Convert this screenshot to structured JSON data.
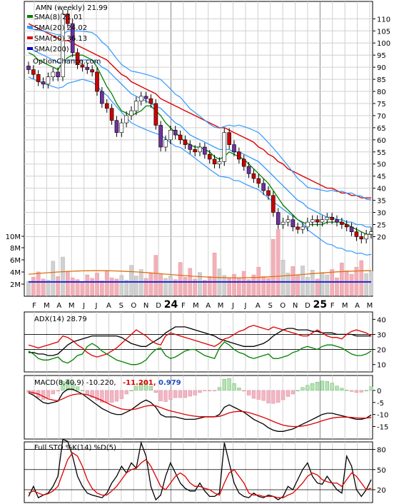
{
  "chart_data": [
    {
      "type": "candlestick",
      "panel": "price",
      "title": "AMN (weekly) 21.99",
      "ylim": [
        16,
        116
      ],
      "yticks": [
        20,
        25,
        30,
        35,
        40,
        45,
        50,
        55,
        60,
        65,
        70,
        75,
        80,
        85,
        90,
        95,
        100,
        105,
        110
      ],
      "legend": [
        {
          "label": "SMA(8) 21.01",
          "color": "#008000"
        },
        {
          "label": "SMA(20) 24.02",
          "color": "#3399ff"
        },
        {
          "label": "SMA(50) 36.13",
          "color": "#dd0000"
        },
        {
          "label": "SMA(200)",
          "color": "#0000cc"
        }
      ],
      "watermark": "OptionChance.com",
      "close": [
        89,
        87,
        84,
        83,
        86,
        88,
        86,
        112,
        108,
        96,
        91,
        90,
        89,
        88,
        80,
        75,
        73,
        68,
        63,
        67,
        70,
        72,
        76,
        78,
        77,
        75,
        66,
        57,
        60,
        64,
        62,
        60,
        58,
        56,
        55,
        57,
        54,
        52,
        50,
        51,
        63,
        58,
        55,
        52,
        49,
        46,
        44,
        42,
        39,
        37,
        30,
        25,
        26,
        27,
        24,
        23,
        24,
        26,
        27,
        26,
        27,
        28,
        27,
        26,
        25,
        24,
        22,
        20,
        19,
        21,
        22
      ],
      "sma8": [
        96,
        95,
        93,
        92,
        91,
        90,
        89,
        92,
        94,
        95,
        95,
        95,
        94,
        93,
        90,
        86,
        82,
        79,
        75,
        72,
        71,
        70,
        71,
        72,
        74,
        74,
        72,
        70,
        67,
        65,
        63,
        61,
        59,
        58,
        57,
        57,
        56,
        55,
        53,
        52,
        53,
        55,
        54,
        53,
        52,
        50,
        48,
        46,
        44,
        42,
        39,
        36,
        33,
        31,
        29,
        27,
        26,
        25,
        25,
        25,
        25,
        26,
        26,
        26,
        26,
        25,
        24,
        23,
        22,
        21,
        21
      ],
      "sma20": [
        98,
        97,
        96,
        95,
        94,
        93,
        92,
        92,
        93,
        93,
        93,
        93,
        93,
        93,
        92,
        90,
        89,
        87,
        85,
        83,
        81,
        79,
        78,
        77,
        76,
        75,
        74,
        73,
        71,
        69,
        67,
        66,
        64,
        62,
        61,
        60,
        59,
        58,
        57,
        56,
        56,
        56,
        55,
        55,
        54,
        53,
        52,
        51,
        49,
        47,
        45,
        43,
        41,
        39,
        37,
        35,
        34,
        32,
        31,
        30,
        29,
        28,
        28,
        27,
        27,
        26,
        26,
        25,
        25,
        24,
        24
      ],
      "sma50": [
        108,
        107,
        106,
        105,
        104,
        103,
        102,
        101,
        101,
        100,
        99,
        98,
        97,
        96,
        95,
        94,
        93,
        91,
        89,
        87,
        86,
        84,
        83,
        82,
        81,
        80,
        79,
        77,
        76,
        75,
        74,
        73,
        72,
        71,
        70,
        69,
        68,
        67,
        66,
        65,
        65,
        64,
        63,
        62,
        61,
        60,
        59,
        57,
        56,
        54,
        53,
        51,
        50,
        48,
        47,
        46,
        45,
        44,
        43,
        42,
        41,
        40,
        40,
        39,
        38,
        38,
        37,
        37,
        36,
        36,
        36
      ],
      "volume_yticks": [
        "2M",
        "4M",
        "6M",
        "8M",
        "10M"
      ]
    },
    {
      "type": "line",
      "panel": "adx",
      "title": "ADX(14) 28.79",
      "ylim": [
        7,
        43
      ],
      "yticks": [
        10,
        20,
        30,
        40
      ],
      "series": [
        {
          "name": "ADX(14)",
          "color": "#000000",
          "values": [
            18,
            18,
            17,
            17,
            16,
            16,
            17,
            20,
            23,
            25,
            26,
            27,
            28,
            29,
            29,
            29,
            29,
            29,
            29,
            28,
            26,
            24,
            23,
            22,
            22,
            24,
            26,
            28,
            31,
            33,
            35,
            35,
            35,
            34,
            33,
            32,
            31,
            30,
            29,
            27,
            26,
            25,
            24,
            23,
            22,
            22,
            22,
            23,
            24,
            26,
            29,
            31,
            33,
            34,
            34,
            33,
            33,
            33,
            32,
            32,
            31,
            31,
            31,
            30,
            30,
            30,
            30,
            29,
            29,
            29,
            29
          ]
        },
        {
          "values": [
            23,
            22,
            21,
            22,
            23,
            24,
            25,
            29,
            28,
            26,
            23,
            21,
            18,
            16,
            15,
            16,
            17,
            19,
            21,
            24,
            27,
            30,
            33,
            31,
            29,
            26,
            24,
            23,
            29,
            31,
            30,
            29,
            28,
            27,
            26,
            25,
            24,
            23,
            22,
            24,
            27,
            28,
            30,
            32,
            33,
            35,
            36,
            35,
            34,
            33,
            35,
            34,
            33,
            32,
            31,
            30,
            29,
            29,
            31,
            33,
            31,
            29,
            28,
            28,
            27,
            30,
            32,
            33,
            32,
            31,
            29
          ],
          "color": "#dd0000"
        },
        {
          "values": [
            19,
            17,
            14,
            13,
            13,
            14,
            15,
            12,
            11,
            13,
            16,
            17,
            22,
            24,
            22,
            19,
            17,
            15,
            13,
            12,
            11,
            10,
            10,
            11,
            13,
            17,
            20,
            21,
            16,
            14,
            15,
            17,
            19,
            20,
            20,
            18,
            16,
            15,
            14,
            21,
            25,
            23,
            20,
            18,
            17,
            15,
            14,
            15,
            16,
            17,
            14,
            14,
            15,
            16,
            18,
            19,
            21,
            22,
            21,
            20,
            22,
            23,
            23,
            22,
            21,
            19,
            17,
            16,
            16,
            17,
            19
          ],
          "color": "#008000"
        }
      ],
      "hlines": [
        20,
        30
      ]
    },
    {
      "type": "line",
      "panel": "macd",
      "title": "MACD(8,40,9) -10.220,",
      "readouts": [
        {
          "text": "-11.201,",
          "color": "#dd0000"
        },
        {
          "text": "0.979",
          "color": "#1f4fbf"
        }
      ],
      "ylim": [
        -19,
        5
      ],
      "yticks": [
        0,
        -5,
        -10,
        -15
      ],
      "series": [
        {
          "values": [
            -1,
            -2,
            -3.5,
            -5,
            -5.5,
            -5,
            -4.5,
            -1,
            0.5,
            0.5,
            -0.5,
            -1.5,
            -3,
            -4.5,
            -6,
            -7.5,
            -8.5,
            -9.5,
            -10,
            -10,
            -9,
            -8,
            -6.5,
            -5,
            -4,
            -5,
            -7,
            -10,
            -11,
            -11,
            -11,
            -11.5,
            -12,
            -12,
            -12,
            -11.5,
            -11,
            -11,
            -11,
            -10,
            -7,
            -6,
            -7,
            -8,
            -9,
            -10.5,
            -12,
            -13,
            -14,
            -15.5,
            -16.5,
            -17,
            -17,
            -16.5,
            -16,
            -15,
            -14,
            -13,
            -12,
            -11,
            -10,
            -9.5,
            -9.5,
            -10,
            -10.5,
            -11,
            -11.5,
            -12,
            -12,
            -11.5,
            -10.2
          ],
          "color": "#000000"
        },
        {
          "values": [
            -0.5,
            -1,
            -1.5,
            -2.5,
            -3.5,
            -4,
            -4.3,
            -3.5,
            -2.5,
            -1.8,
            -1.5,
            -1.5,
            -1.8,
            -2.5,
            -3.3,
            -4.2,
            -5.2,
            -6.2,
            -7,
            -7.7,
            -8,
            -8,
            -7.7,
            -7.1,
            -6.5,
            -6.2,
            -6.4,
            -7.1,
            -7.9,
            -8.5,
            -9,
            -9.5,
            -10,
            -10.4,
            -10.7,
            -10.9,
            -10.9,
            -10.9,
            -10.9,
            -10.8,
            -10.1,
            -9.3,
            -8.9,
            -8.7,
            -8.8,
            -9.2,
            -9.8,
            -10.5,
            -11.2,
            -12,
            -12.9,
            -13.7,
            -14.4,
            -14.8,
            -15,
            -15,
            -14.8,
            -14.4,
            -13.9,
            -13.3,
            -12.6,
            -12,
            -11.5,
            -11.2,
            -11.1,
            -11.1,
            -11.2,
            -11.4,
            -11.5,
            -11.5,
            -11.2
          ],
          "color": "#dd0000"
        }
      ]
    },
    {
      "type": "line",
      "panel": "stochastic",
      "title": "Full STO %K(14) %D(5)",
      "ylim": [
        4,
        87
      ],
      "yticks": [
        20,
        50,
        80
      ],
      "series": [
        {
          "values": [
            10,
            25,
            8,
            12,
            15,
            25,
            40,
            95,
            92,
            70,
            40,
            25,
            15,
            12,
            10,
            8,
            15,
            30,
            40,
            55,
            45,
            60,
            52,
            90,
            70,
            25,
            5,
            12,
            40,
            60,
            45,
            30,
            22,
            18,
            18,
            30,
            18,
            10,
            10,
            15,
            90,
            60,
            30,
            15,
            10,
            8,
            15,
            10,
            8,
            12,
            10,
            5,
            10,
            25,
            20,
            35,
            50,
            60,
            40,
            30,
            28,
            40,
            30,
            20,
            15,
            70,
            55,
            20,
            10,
            20,
            35
          ],
          "color": "#000000"
        },
        {
          "values": [
            15,
            18,
            15,
            12,
            14,
            18,
            25,
            45,
            65,
            75,
            70,
            55,
            35,
            22,
            15,
            12,
            12,
            18,
            25,
            35,
            45,
            50,
            52,
            60,
            65,
            55,
            40,
            25,
            20,
            30,
            40,
            45,
            40,
            30,
            25,
            25,
            22,
            20,
            15,
            12,
            30,
            45,
            50,
            40,
            30,
            15,
            12,
            12,
            10,
            10,
            10,
            8,
            8,
            12,
            15,
            22,
            30,
            40,
            45,
            42,
            35,
            32,
            30,
            30,
            25,
            35,
            45,
            40,
            30,
            20,
            22
          ],
          "color": "#dd0000"
        }
      ],
      "hlines": [
        20,
        50,
        80
      ]
    }
  ],
  "x_axis": {
    "labels": [
      "F",
      "M",
      "A",
      "M",
      "J",
      "J",
      "A",
      "S",
      "O",
      "N",
      "D",
      "24",
      "F",
      "M",
      "A",
      "M",
      "J",
      "J",
      "A",
      "S",
      "O",
      "N",
      "D",
      "25",
      "F",
      "M",
      "A",
      "M"
    ],
    "year_labels": [
      "24",
      "25"
    ]
  }
}
